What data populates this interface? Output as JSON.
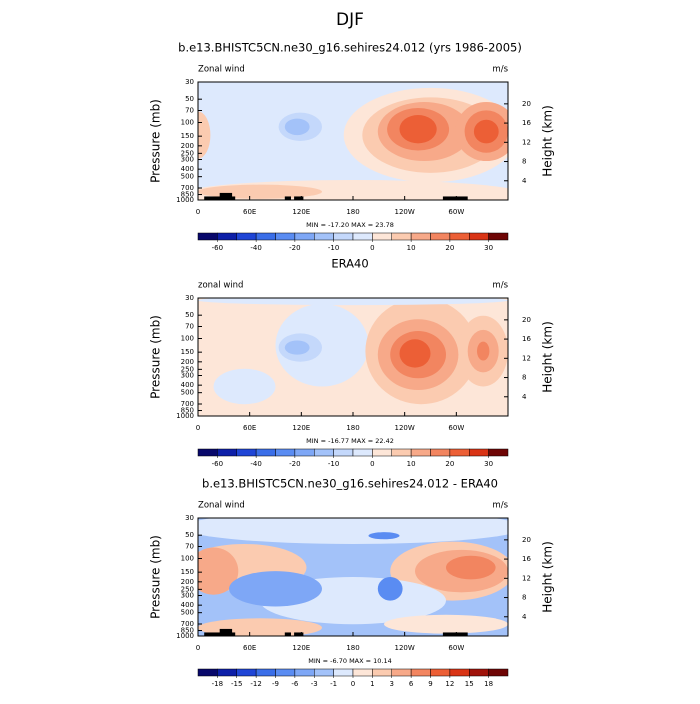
{
  "title": "DJF",
  "chart_data": [
    {
      "type": "contour",
      "title": "b.e13.BHISTC5CN.ne30_g16.sehires24.012 (yrs 1986-2005)",
      "left_label": "Zonal wind",
      "right_label": "m/s",
      "ylabel": "Pressure (mb)",
      "y2label": "Height (km)",
      "log_y": true,
      "ylim": [
        1000,
        30
      ],
      "yticks": [
        30,
        50,
        70,
        100,
        150,
        200,
        250,
        300,
        400,
        500,
        700,
        850,
        1000
      ],
      "y2ticks": [
        4,
        8,
        12,
        16,
        20
      ],
      "xlim": [
        0,
        360
      ],
      "xticks": [
        0,
        {
          "value": 60,
          "label": "60E"
        },
        {
          "value": 120,
          "label": "120E"
        },
        180,
        {
          "value": 240,
          "label": "120W"
        },
        {
          "value": 300,
          "label": "60W"
        }
      ],
      "stats": "MIN = -17.20  MAX = 23.78",
      "colorbar": {
        "ticks": [
          -60,
          -40,
          -20,
          -10,
          0,
          10,
          20,
          30
        ],
        "colors": [
          "#08086b",
          "#0d1fa8",
          "#1f45d6",
          "#3a6ee8",
          "#5a8cf2",
          "#7ea7f6",
          "#a3c2f9",
          "#c4d8fb",
          "#dde9fd",
          "#fde6d8",
          "#fbcbb0",
          "#f7a989",
          "#f28560",
          "#ec5f36",
          "#d93415",
          "#6e0505"
        ]
      }
    },
    {
      "type": "contour",
      "title": "ERA40",
      "left_label": "zonal wind",
      "right_label": "m/s",
      "ylabel": "Pressure (mb)",
      "y2label": "Height (km)",
      "log_y": true,
      "ylim": [
        1000,
        30
      ],
      "yticks": [
        30,
        50,
        70,
        100,
        150,
        200,
        250,
        300,
        400,
        500,
        700,
        850,
        1000
      ],
      "y2ticks": [
        4,
        8,
        12,
        16,
        20
      ],
      "xlim": [
        0,
        360
      ],
      "xticks": [
        0,
        {
          "value": 60,
          "label": "60E"
        },
        {
          "value": 120,
          "label": "120E"
        },
        180,
        {
          "value": 240,
          "label": "120W"
        },
        {
          "value": 300,
          "label": "60W"
        }
      ],
      "stats": "MIN = -16.77  MAX = 22.42",
      "colorbar": {
        "ticks": [
          -60,
          -40,
          -20,
          -10,
          0,
          10,
          20,
          30
        ],
        "colors": [
          "#08086b",
          "#0d1fa8",
          "#1f45d6",
          "#3a6ee8",
          "#5a8cf2",
          "#7ea7f6",
          "#a3c2f9",
          "#c4d8fb",
          "#dde9fd",
          "#fde6d8",
          "#fbcbb0",
          "#f7a989",
          "#f28560",
          "#ec5f36",
          "#d93415",
          "#6e0505"
        ]
      }
    },
    {
      "type": "contour",
      "title": "b.e13.BHISTC5CN.ne30_g16.sehires24.012 - ERA40",
      "left_label": "Zonal wind",
      "right_label": "m/s",
      "ylabel": "Pressure (mb)",
      "y2label": "Height (km)",
      "log_y": true,
      "ylim": [
        1000,
        30
      ],
      "yticks": [
        30,
        50,
        70,
        100,
        150,
        200,
        250,
        300,
        400,
        500,
        700,
        850,
        1000
      ],
      "y2ticks": [
        4,
        8,
        12,
        16,
        20
      ],
      "xlim": [
        0,
        360
      ],
      "xticks": [
        0,
        {
          "value": 60,
          "label": "60E"
        },
        {
          "value": 120,
          "label": "120E"
        },
        180,
        {
          "value": 240,
          "label": "120W"
        },
        {
          "value": 300,
          "label": "60W"
        }
      ],
      "stats": "MIN = -6.70  MAX = 10.14",
      "colorbar": {
        "ticks": [
          -18,
          -15,
          -12,
          -9,
          -6,
          -3,
          -1,
          0,
          1,
          3,
          6,
          9,
          12,
          15,
          18
        ],
        "colors": [
          "#08086b",
          "#0d1fa8",
          "#1f45d6",
          "#3a6ee8",
          "#5a8cf2",
          "#7ea7f6",
          "#a3c2f9",
          "#dde9fd",
          "#fde6d8",
          "#fbcbb0",
          "#f7a989",
          "#f28560",
          "#ec5f36",
          "#d93415",
          "#a0130a",
          "#6e0505"
        ]
      }
    }
  ]
}
